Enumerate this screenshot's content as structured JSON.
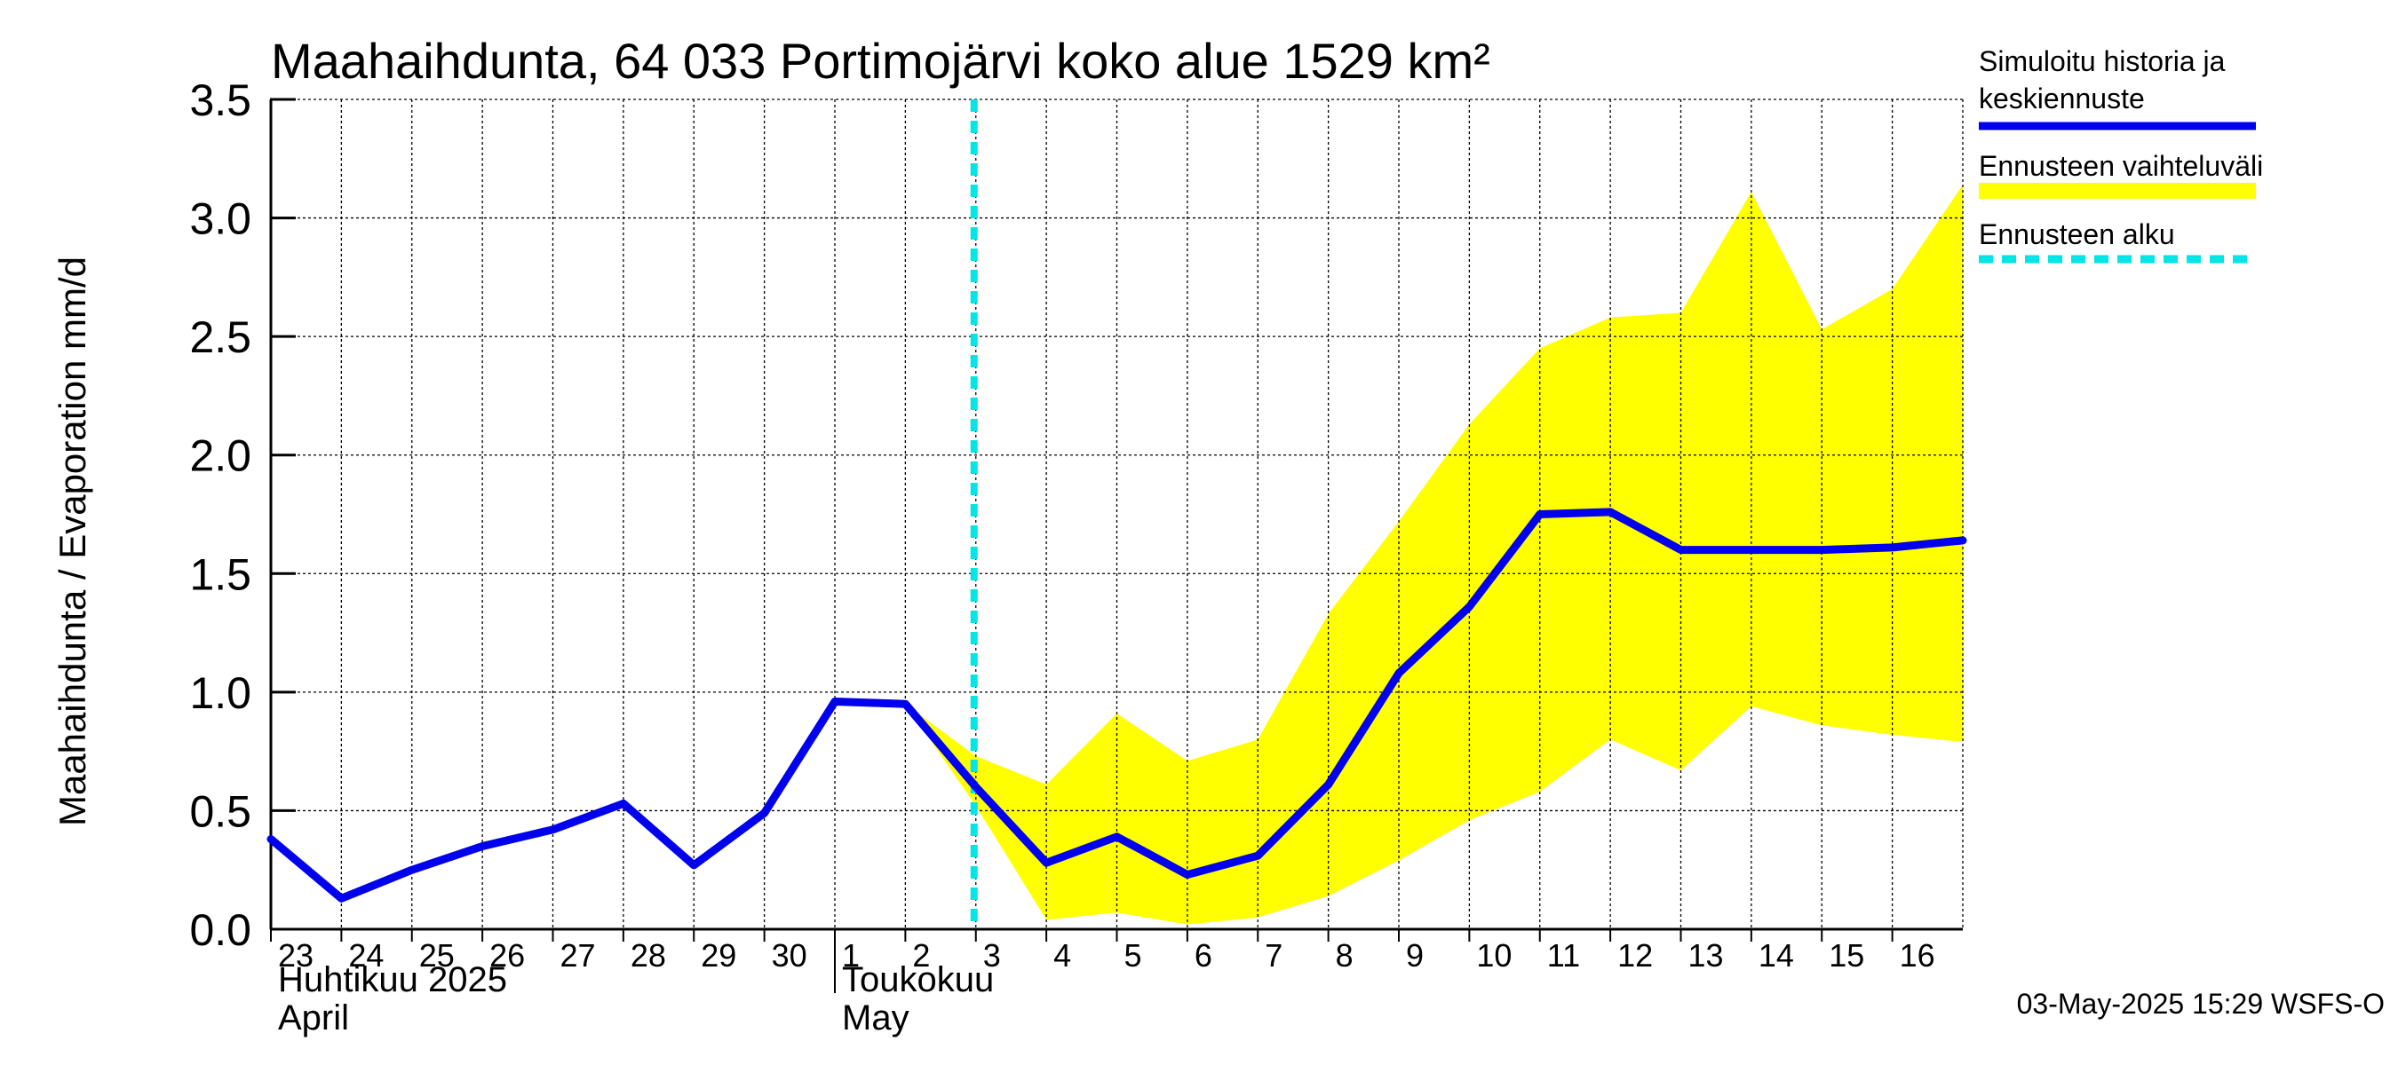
{
  "chart_data": {
    "type": "line",
    "title": "Maahaihdunta, 64 033 Portimojärvi koko alue 1529 km²",
    "ylabel": "Maahaihdunta / Evaporation   mm/d",
    "ylim": [
      0,
      3.5
    ],
    "yticks": [
      {
        "value": 0.0,
        "label": "0.0"
      },
      {
        "value": 0.5,
        "label": "0.5"
      },
      {
        "value": 1.0,
        "label": "1.0"
      },
      {
        "value": 1.5,
        "label": "1.5"
      },
      {
        "value": 2.0,
        "label": "2.0"
      },
      {
        "value": 2.5,
        "label": "2.5"
      },
      {
        "value": 3.0,
        "label": "3.0"
      },
      {
        "value": 3.5,
        "label": "3.5"
      }
    ],
    "xlim": [
      0,
      24
    ],
    "xticks": [
      {
        "day": 0,
        "label": "23"
      },
      {
        "day": 1,
        "label": "24"
      },
      {
        "day": 2,
        "label": "25"
      },
      {
        "day": 3,
        "label": "26"
      },
      {
        "day": 4,
        "label": "27"
      },
      {
        "day": 5,
        "label": "28"
      },
      {
        "day": 6,
        "label": "29"
      },
      {
        "day": 7,
        "label": "30"
      },
      {
        "day": 8,
        "label": "1"
      },
      {
        "day": 9,
        "label": "2"
      },
      {
        "day": 10,
        "label": "3"
      },
      {
        "day": 11,
        "label": "4"
      },
      {
        "day": 12,
        "label": "5"
      },
      {
        "day": 13,
        "label": "6"
      },
      {
        "day": 14,
        "label": "7"
      },
      {
        "day": 15,
        "label": "8"
      },
      {
        "day": 16,
        "label": "9"
      },
      {
        "day": 17,
        "label": "10"
      },
      {
        "day": 18,
        "label": "11"
      },
      {
        "day": 19,
        "label": "12"
      },
      {
        "day": 20,
        "label": "13"
      },
      {
        "day": 21,
        "label": "14"
      },
      {
        "day": 22,
        "label": "15"
      },
      {
        "day": 23,
        "label": "16"
      }
    ],
    "month_labels": [
      {
        "day": 0,
        "line1": "Huhtikuu  2025",
        "line2": "April"
      },
      {
        "day": 8,
        "line1": "Toukokuu",
        "line2": "May"
      }
    ],
    "month_divider_day": 8,
    "forecast_start_day": 10,
    "series": [
      {
        "name": "Simuloitu historia ja keskiennuste",
        "color": "#0000ee",
        "points": [
          [
            0,
            0.38
          ],
          [
            1,
            0.13
          ],
          [
            2,
            0.25
          ],
          [
            3,
            0.35
          ],
          [
            4,
            0.42
          ],
          [
            5,
            0.53
          ],
          [
            6,
            0.27
          ],
          [
            7,
            0.49
          ],
          [
            8,
            0.96
          ],
          [
            9,
            0.95
          ],
          [
            10,
            0.6
          ],
          [
            11,
            0.28
          ],
          [
            12,
            0.39
          ],
          [
            13,
            0.23
          ],
          [
            14,
            0.31
          ],
          [
            15,
            0.61
          ],
          [
            16,
            1.08
          ],
          [
            17,
            1.36
          ],
          [
            18,
            1.75
          ],
          [
            19,
            1.76
          ],
          [
            20,
            1.6
          ],
          [
            21,
            1.6
          ],
          [
            22,
            1.6
          ],
          [
            23,
            1.61
          ],
          [
            24,
            1.64
          ]
        ]
      }
    ],
    "band": {
      "name": "Ennusteen vaihteluväli",
      "color": "#ffff00",
      "upper": [
        [
          9,
          0.95
        ],
        [
          10,
          0.73
        ],
        [
          11,
          0.61
        ],
        [
          12,
          0.91
        ],
        [
          13,
          0.71
        ],
        [
          14,
          0.8
        ],
        [
          15,
          1.33
        ],
        [
          16,
          1.72
        ],
        [
          17,
          2.13
        ],
        [
          18,
          2.45
        ],
        [
          19,
          2.58
        ],
        [
          20,
          2.6
        ],
        [
          21,
          3.11
        ],
        [
          22,
          2.53
        ],
        [
          23,
          2.7
        ],
        [
          24,
          3.14
        ]
      ],
      "lower": [
        [
          9,
          0.95
        ],
        [
          10,
          0.52
        ],
        [
          11,
          0.04
        ],
        [
          12,
          0.07
        ],
        [
          13,
          0.02
        ],
        [
          14,
          0.05
        ],
        [
          15,
          0.14
        ],
        [
          16,
          0.29
        ],
        [
          17,
          0.46
        ],
        [
          18,
          0.58
        ],
        [
          19,
          0.8
        ],
        [
          20,
          0.67
        ],
        [
          21,
          0.94
        ],
        [
          22,
          0.86
        ],
        [
          23,
          0.82
        ],
        [
          24,
          0.79
        ]
      ]
    },
    "legend": {
      "placement": "right",
      "items": [
        {
          "label1": "Simuloitu historia ja",
          "label2": "keskiennuste",
          "style": "line",
          "color": "#0000ee"
        },
        {
          "label1": "Ennusteen vaihteluväli",
          "label2": "",
          "style": "band",
          "color": "#ffff00"
        },
        {
          "label1": "Ennusteen alku",
          "label2": "",
          "style": "dashed",
          "color": "#00e5e5"
        }
      ]
    },
    "timestamp": "03-May-2025 15:29 WSFS-O"
  }
}
